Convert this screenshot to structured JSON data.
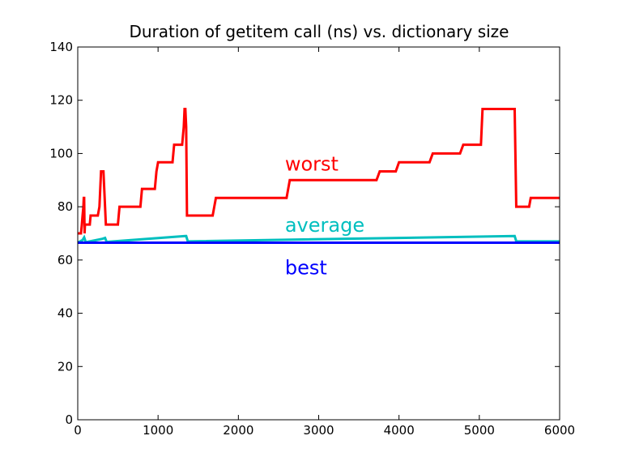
{
  "chart_data": {
    "type": "line",
    "title": "Duration of getitem call (ns) vs. dictionary size",
    "xlabel": "",
    "ylabel": "",
    "xlim": [
      0,
      6000
    ],
    "ylim": [
      0,
      140
    ],
    "xticks": [
      0,
      1000,
      2000,
      3000,
      4000,
      5000,
      6000
    ],
    "yticks": [
      0,
      20,
      40,
      60,
      80,
      100,
      120,
      140
    ],
    "grid": false,
    "legend": "none",
    "series": [
      {
        "name": "worst",
        "color": "#ff0000",
        "x": [
          0,
          40,
          50,
          60,
          70,
          75,
          80,
          85,
          90,
          95,
          100,
          150,
          160,
          250,
          270,
          290,
          320,
          340,
          350,
          500,
          520,
          780,
          800,
          960,
          980,
          1000,
          1180,
          1200,
          1300,
          1310,
          1320,
          1330,
          1340,
          1350,
          1360,
          1370,
          1380,
          1680,
          1700,
          1720,
          2600,
          2640,
          3720,
          3760,
          3960,
          4000,
          4380,
          4420,
          4760,
          4800,
          5020,
          5040,
          5440,
          5460,
          5620,
          5640,
          6000
        ],
        "y": [
          70,
          70,
          73,
          76.7,
          80,
          83.3,
          83.3,
          70,
          73.3,
          73.3,
          73.3,
          73.3,
          76.7,
          76.7,
          80,
          93.3,
          93.3,
          80,
          73.3,
          73.3,
          80,
          80,
          86.7,
          86.7,
          93.3,
          96.7,
          96.7,
          103.3,
          103.3,
          106.7,
          110,
          116.7,
          116.7,
          110,
          76.7,
          76.7,
          76.7,
          76.7,
          80,
          83.3,
          83.3,
          90,
          90,
          93.3,
          93.3,
          96.7,
          96.7,
          100,
          100,
          103.3,
          103.3,
          116.7,
          116.7,
          80,
          80,
          83.3,
          83.3
        ]
      },
      {
        "name": "average",
        "color": "#00bfbf",
        "x": [
          0,
          60,
          80,
          100,
          300,
          340,
          360,
          1340,
          1350,
          1370,
          5440,
          5460,
          6000
        ],
        "y": [
          66.5,
          67.5,
          68.5,
          66.7,
          67.9,
          68.3,
          66.8,
          69,
          69,
          67,
          69,
          67,
          67
        ]
      },
      {
        "name": "best",
        "color": "#0000ff",
        "x": [
          0,
          6000
        ],
        "y": [
          66.5,
          66.5
        ]
      }
    ],
    "annotations": [
      {
        "text": "worst",
        "x": 2580,
        "y": 96,
        "color": "#ff0000"
      },
      {
        "text": "average",
        "x": 2580,
        "y": 73,
        "color": "#00bfbf"
      },
      {
        "text": "best",
        "x": 2580,
        "y": 57,
        "color": "#0000ff"
      }
    ]
  }
}
